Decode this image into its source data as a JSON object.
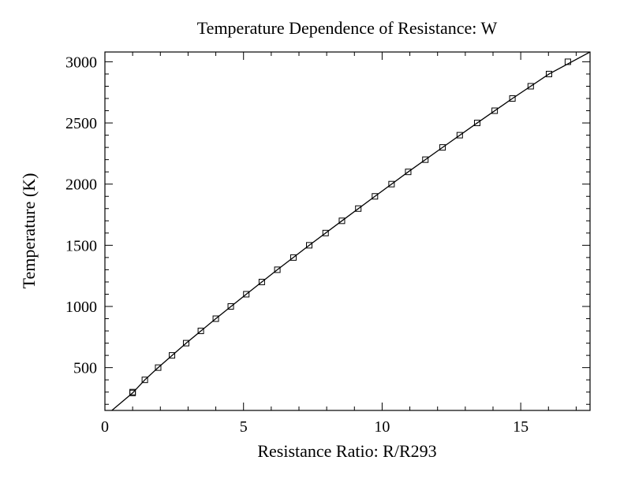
{
  "chart_data": {
    "type": "scatter",
    "title": "Temperature Dependence of Resistance: W",
    "xlabel": "Resistance Ratio: R/R293",
    "ylabel": "Temperature (K)",
    "xlim": [
      0,
      17.5
    ],
    "ylim": [
      150,
      3080
    ],
    "x_ticks": [
      0,
      5,
      10,
      15
    ],
    "x_tick_labels": [
      "0",
      "5",
      "10",
      "15"
    ],
    "x_minor_step": 1,
    "y_ticks": [
      500,
      1000,
      1500,
      2000,
      2500,
      3000
    ],
    "y_tick_labels": [
      "500",
      "1000",
      "1500",
      "2000",
      "2500",
      "3000"
    ],
    "y_minor_step": 100,
    "grid": false,
    "series": [
      {
        "marker": "square",
        "points": [
          {
            "x": 1.0,
            "y": 293
          },
          {
            "x": 1.0,
            "y": 300
          },
          {
            "x": 1.44,
            "y": 400
          },
          {
            "x": 1.92,
            "y": 500
          },
          {
            "x": 2.42,
            "y": 600
          },
          {
            "x": 2.93,
            "y": 700
          },
          {
            "x": 3.46,
            "y": 800
          },
          {
            "x": 4.0,
            "y": 900
          },
          {
            "x": 4.54,
            "y": 1000
          },
          {
            "x": 5.1,
            "y": 1100
          },
          {
            "x": 5.66,
            "y": 1200
          },
          {
            "x": 6.22,
            "y": 1300
          },
          {
            "x": 6.8,
            "y": 1400
          },
          {
            "x": 7.37,
            "y": 1500
          },
          {
            "x": 7.96,
            "y": 1600
          },
          {
            "x": 8.55,
            "y": 1700
          },
          {
            "x": 9.14,
            "y": 1800
          },
          {
            "x": 9.74,
            "y": 1900
          },
          {
            "x": 10.34,
            "y": 2000
          },
          {
            "x": 10.94,
            "y": 2100
          },
          {
            "x": 11.56,
            "y": 2200
          },
          {
            "x": 12.18,
            "y": 2300
          },
          {
            "x": 12.8,
            "y": 2400
          },
          {
            "x": 13.43,
            "y": 2500
          },
          {
            "x": 14.06,
            "y": 2600
          },
          {
            "x": 14.7,
            "y": 2700
          },
          {
            "x": 15.36,
            "y": 2800
          },
          {
            "x": 16.02,
            "y": 2900
          },
          {
            "x": 16.7,
            "y": 3000
          }
        ]
      },
      {
        "marker": "none",
        "line": true,
        "points": [
          {
            "x": 0.25,
            "y": 150
          },
          {
            "x": 1.0,
            "y": 293
          },
          {
            "x": 1.44,
            "y": 400
          },
          {
            "x": 1.92,
            "y": 500
          },
          {
            "x": 2.93,
            "y": 700
          },
          {
            "x": 4.0,
            "y": 900
          },
          {
            "x": 5.1,
            "y": 1100
          },
          {
            "x": 6.22,
            "y": 1300
          },
          {
            "x": 7.37,
            "y": 1500
          },
          {
            "x": 8.55,
            "y": 1700
          },
          {
            "x": 9.74,
            "y": 1900
          },
          {
            "x": 10.94,
            "y": 2100
          },
          {
            "x": 12.18,
            "y": 2300
          },
          {
            "x": 13.43,
            "y": 2500
          },
          {
            "x": 14.7,
            "y": 2700
          },
          {
            "x": 16.02,
            "y": 2900
          },
          {
            "x": 17.5,
            "y": 3080
          }
        ]
      }
    ]
  }
}
